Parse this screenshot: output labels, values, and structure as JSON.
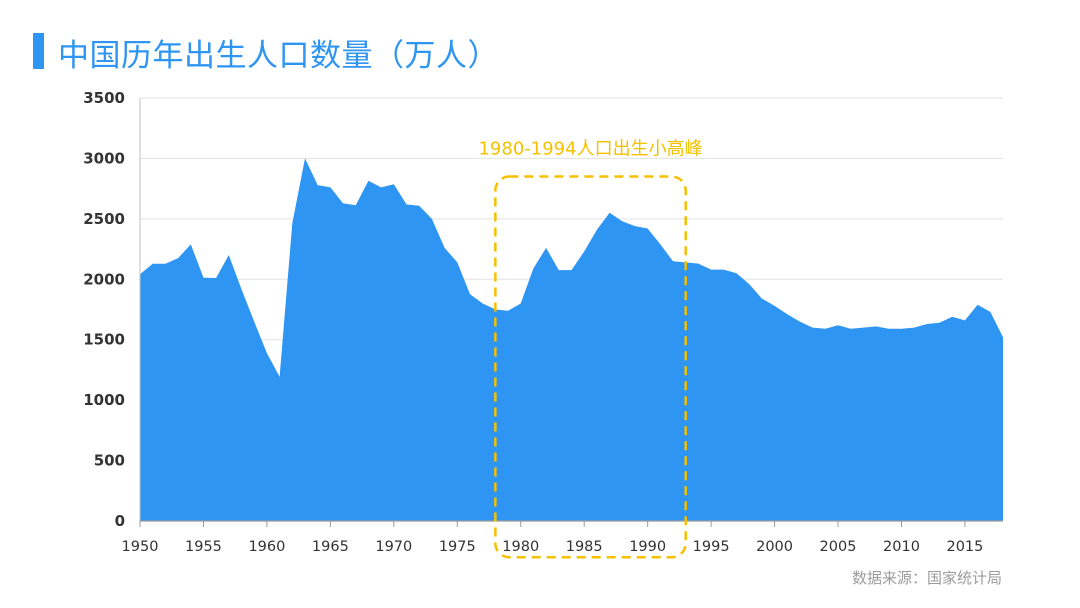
{
  "title": "中国历年出生人口数量（万人）",
  "source": "数据来源：国家统计局",
  "colors": {
    "accent": "#2e95f2",
    "area": "#2e95f2",
    "highlight": "#f5c000",
    "gridline": "#e2e2e2",
    "tick_text": "#333333",
    "source_text": "#9b9b9b"
  },
  "chart_data": {
    "type": "area",
    "title": "中国历年出生人口数量（万人）",
    "xlabel": "",
    "ylabel": "",
    "x": [
      1950,
      1951,
      1952,
      1953,
      1954,
      1955,
      1956,
      1957,
      1958,
      1959,
      1960,
      1961,
      1962,
      1963,
      1964,
      1965,
      1966,
      1967,
      1968,
      1969,
      1970,
      1971,
      1972,
      1973,
      1974,
      1975,
      1976,
      1977,
      1978,
      1979,
      1980,
      1981,
      1982,
      1983,
      1984,
      1985,
      1986,
      1987,
      1988,
      1989,
      1990,
      1991,
      1992,
      1993,
      1994,
      1995,
      1996,
      1997,
      1998,
      1999,
      2000,
      2001,
      2002,
      2003,
      2004,
      2005,
      2006,
      2007,
      2008,
      2009,
      2010,
      2011,
      2012,
      2013,
      2014,
      2015,
      2016,
      2017,
      2018
    ],
    "series": [
      {
        "values": [
          2042,
          2128,
          2128,
          2175,
          2289,
          2012,
          2011,
          2201,
          1917,
          1650,
          1389,
          1194,
          2464,
          3000,
          2779,
          2760,
          2628,
          2613,
          2815,
          2760,
          2787,
          2620,
          2608,
          2500,
          2260,
          2140,
          1876,
          1800,
          1750,
          1740,
          1800,
          2090,
          2260,
          2076,
          2076,
          2230,
          2410,
          2550,
          2480,
          2440,
          2420,
          2290,
          2150,
          2140,
          2130,
          2080,
          2080,
          2050,
          1960,
          1840,
          1780,
          1710,
          1650,
          1600,
          1590,
          1620,
          1590,
          1600,
          1610,
          1590,
          1590,
          1600,
          1630,
          1640,
          1690,
          1660,
          1790,
          1730,
          1520
        ]
      }
    ],
    "xticks": [
      "1950",
      "1955",
      "1960",
      "1965",
      "1970",
      "1975",
      "1980",
      "1985",
      "1990",
      "1995",
      "2000",
      "2005",
      "2010",
      "2015"
    ],
    "yticks": [
      "0",
      "500",
      "1000",
      "1500",
      "2000",
      "2500",
      "3000",
      "3500"
    ],
    "xlim": [
      1950,
      2018
    ],
    "ylim": [
      0,
      3500
    ],
    "grid": true,
    "annotations": [
      {
        "text": "1980-1994人口出生小高峰",
        "x_start": 1978,
        "x_end": 1993,
        "y_start": 2850,
        "y_end": -300,
        "style": "dashed-rounded-box"
      }
    ]
  }
}
